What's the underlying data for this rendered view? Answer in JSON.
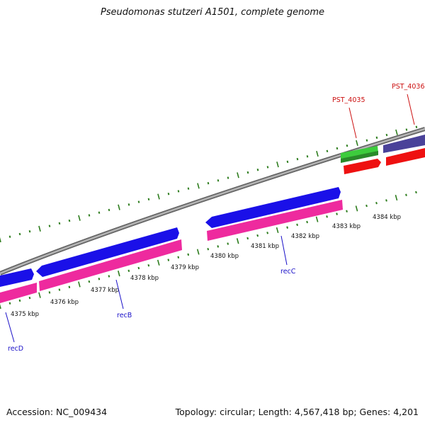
{
  "title": "Pseudomonas stutzeri A1501, complete genome",
  "accession": "Accession: NC_009434",
  "summary": "Topology: circular; Length: 4,567,418 bp; Genes: 4,201",
  "colors": {
    "backbone": "#8c8c8c",
    "ticks": "#2e7d1e",
    "tick_labels": "#111111",
    "gene_blue": "#1a10e8",
    "gene_pink": "#ee2a9e",
    "gene_red": "#ee1111",
    "gene_green": "#3dcc3d",
    "gene_purple": "#4a4299",
    "label_blue": "#1a10c8",
    "label_red": "#cc1111"
  },
  "ticks": {
    "labels": [
      "4375 kbp",
      "4376 kbp",
      "4377 kbp",
      "4378 kbp",
      "4379 kbp",
      "4380 kbp",
      "4381 kbp",
      "4382 kbp",
      "4383 kbp",
      "4384 kbp"
    ]
  },
  "genes": {
    "forward_inner": [
      {
        "label": "recD",
        "label_color": "label_blue"
      },
      {
        "label": "recB",
        "label_color": "label_blue"
      },
      {
        "label": "recC",
        "label_color": "label_blue"
      }
    ],
    "outer": [
      {
        "label": "PST_4035",
        "label_color": "label_red"
      },
      {
        "label": "PST_4036",
        "label_color": "label_red"
      }
    ]
  }
}
